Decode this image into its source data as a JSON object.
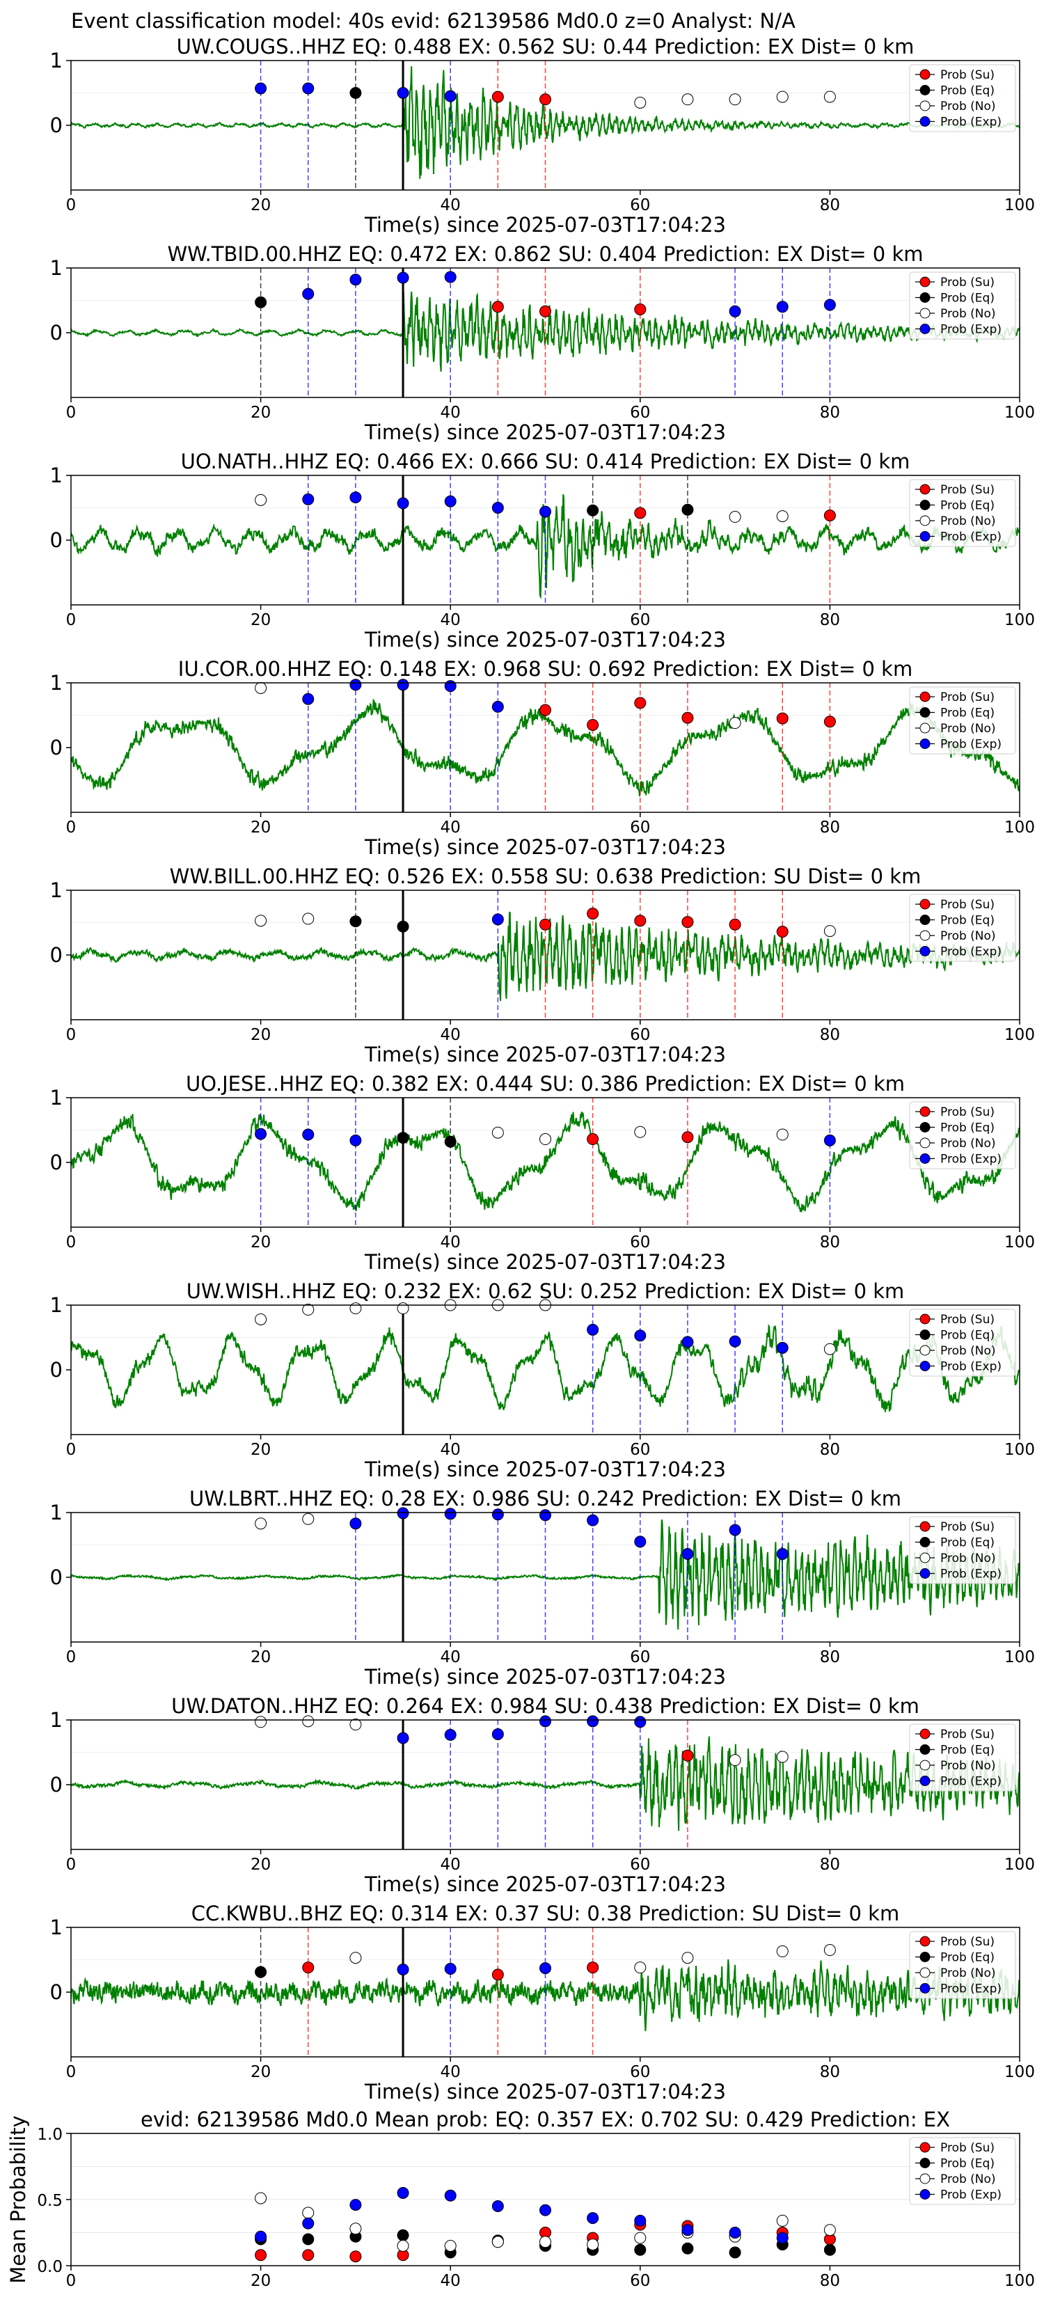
{
  "suptitle": "Event classification model: 40s evid: 62139586 Md0.0 z=0 Analyst: N/A",
  "legend_labels": [
    "Prob (Su)",
    "Prob (Eq)",
    "Prob (No)",
    "Prob (Exp)"
  ],
  "colors": {
    "su": "#ff0000",
    "eq": "#000000",
    "no": "#ffffff",
    "exp": "#0000ff",
    "trace": "#008000"
  },
  "chart_data": [
    {
      "type": "line",
      "title": "UW.COUGS..HHZ   EQ: 0.488  EX: 0.562  SU: 0.44   Prediction: EX    Dist= 0 km",
      "xlabel": "Time(s) since 2025-07-03T17:04:23",
      "xlim": [
        0,
        100
      ],
      "ylim": [
        -1,
        1
      ],
      "xticks": [
        0,
        20,
        40,
        60,
        80,
        100
      ],
      "yticks": [
        0,
        1
      ],
      "arrival_time": 35,
      "noise": 0.02,
      "amp": 0.02,
      "burst": 1.0,
      "decay": 12,
      "freq": 2.2,
      "seed": 1,
      "points": [
        {
          "t": 20,
          "cls": "exp",
          "p": 0.57
        },
        {
          "t": 25,
          "cls": "exp",
          "p": 0.57
        },
        {
          "t": 30,
          "cls": "eq",
          "p": 0.5
        },
        {
          "t": 35,
          "cls": "exp",
          "p": 0.5
        },
        {
          "t": 40,
          "cls": "exp",
          "p": 0.45
        },
        {
          "t": 45,
          "cls": "su",
          "p": 0.44
        },
        {
          "t": 50,
          "cls": "su",
          "p": 0.4
        },
        {
          "t": 60,
          "cls": "no",
          "p": 0.35
        },
        {
          "t": 65,
          "cls": "no",
          "p": 0.4
        },
        {
          "t": 70,
          "cls": "no",
          "p": 0.4
        },
        {
          "t": 75,
          "cls": "no",
          "p": 0.44
        },
        {
          "t": 80,
          "cls": "no",
          "p": 0.44
        }
      ]
    },
    {
      "type": "line",
      "title": "WW.TBID.00.HHZ   EQ: 0.472  EX: 0.862  SU: 0.404   Prediction: EX    Dist= 0 km",
      "xlabel": "Time(s) since 2025-07-03T17:04:23",
      "xlim": [
        0,
        100
      ],
      "ylim": [
        -1,
        1
      ],
      "xticks": [
        0,
        20,
        40,
        60,
        80,
        100
      ],
      "yticks": [
        0,
        1
      ],
      "arrival_time": 35,
      "noise": 0.02,
      "amp": 0.03,
      "burst": 0.65,
      "decay": 28,
      "freq": 1.6,
      "seed": 2,
      "points": [
        {
          "t": 20,
          "cls": "eq",
          "p": 0.47
        },
        {
          "t": 25,
          "cls": "exp",
          "p": 0.6
        },
        {
          "t": 30,
          "cls": "exp",
          "p": 0.82
        },
        {
          "t": 35,
          "cls": "exp",
          "p": 0.85
        },
        {
          "t": 40,
          "cls": "exp",
          "p": 0.86
        },
        {
          "t": 45,
          "cls": "su",
          "p": 0.4
        },
        {
          "t": 50,
          "cls": "su",
          "p": 0.33
        },
        {
          "t": 60,
          "cls": "su",
          "p": 0.36
        },
        {
          "t": 70,
          "cls": "exp",
          "p": 0.33
        },
        {
          "t": 75,
          "cls": "exp",
          "p": 0.4
        },
        {
          "t": 80,
          "cls": "exp",
          "p": 0.43
        }
      ]
    },
    {
      "type": "line",
      "title": "UO.NATH..HHZ   EQ: 0.466  EX: 0.666  SU: 0.414   Prediction: EX    Dist= 0 km",
      "xlabel": "Time(s) since 2025-07-03T17:04:23",
      "xlim": [
        0,
        100
      ],
      "ylim": [
        -1,
        1
      ],
      "xticks": [
        0,
        20,
        40,
        60,
        80,
        100
      ],
      "yticks": [
        0,
        1
      ],
      "arrival_time": 35,
      "noise": 0.1,
      "amp": 0.12,
      "burst": 0.75,
      "decay": 10,
      "freq": 1.2,
      "seed": 3,
      "burst_at": 49,
      "points": [
        {
          "t": 20,
          "cls": "no",
          "p": 0.62
        },
        {
          "t": 25,
          "cls": "exp",
          "p": 0.63
        },
        {
          "t": 30,
          "cls": "exp",
          "p": 0.66
        },
        {
          "t": 35,
          "cls": "exp",
          "p": 0.57
        },
        {
          "t": 40,
          "cls": "exp",
          "p": 0.6
        },
        {
          "t": 45,
          "cls": "exp",
          "p": 0.5
        },
        {
          "t": 50,
          "cls": "exp",
          "p": 0.44
        },
        {
          "t": 55,
          "cls": "eq",
          "p": 0.46
        },
        {
          "t": 60,
          "cls": "su",
          "p": 0.42
        },
        {
          "t": 65,
          "cls": "eq",
          "p": 0.47
        },
        {
          "t": 70,
          "cls": "no",
          "p": 0.36
        },
        {
          "t": 75,
          "cls": "no",
          "p": 0.37
        },
        {
          "t": 80,
          "cls": "su",
          "p": 0.38
        }
      ]
    },
    {
      "type": "line",
      "title": "IU.COR.00.HHZ   EQ: 0.148  EX: 0.968  SU: 0.692   Prediction: EX    Dist= 0 km",
      "xlabel": "Time(s) since 2025-07-03T17:04:23",
      "xlim": [
        0,
        100
      ],
      "ylim": [
        -1,
        1
      ],
      "xticks": [
        0,
        20,
        40,
        60,
        80,
        100
      ],
      "yticks": [
        0,
        1
      ],
      "arrival_time": 35,
      "noise": 0.08,
      "amp": 0.45,
      "burst": 0.0,
      "decay": 10,
      "freq": 0.25,
      "seed": 4,
      "points": [
        {
          "t": 20,
          "cls": "no",
          "p": 0.92
        },
        {
          "t": 25,
          "cls": "exp",
          "p": 0.75
        },
        {
          "t": 30,
          "cls": "exp",
          "p": 0.97
        },
        {
          "t": 35,
          "cls": "exp",
          "p": 0.97
        },
        {
          "t": 40,
          "cls": "exp",
          "p": 0.95
        },
        {
          "t": 45,
          "cls": "exp",
          "p": 0.63
        },
        {
          "t": 50,
          "cls": "su",
          "p": 0.58
        },
        {
          "t": 55,
          "cls": "su",
          "p": 0.35
        },
        {
          "t": 60,
          "cls": "su",
          "p": 0.69
        },
        {
          "t": 65,
          "cls": "su",
          "p": 0.46
        },
        {
          "t": 70,
          "cls": "no",
          "p": 0.38
        },
        {
          "t": 75,
          "cls": "su",
          "p": 0.45
        },
        {
          "t": 80,
          "cls": "su",
          "p": 0.4
        }
      ]
    },
    {
      "type": "line",
      "title": "WW.BILL.00.HHZ   EQ: 0.526  EX: 0.558  SU: 0.638   Prediction: SU    Dist= 0 km",
      "xlabel": "Time(s) since 2025-07-03T17:04:23",
      "xlim": [
        0,
        100
      ],
      "ylim": [
        -1,
        1
      ],
      "xticks": [
        0,
        20,
        40,
        60,
        80,
        100
      ],
      "yticks": [
        0,
        1
      ],
      "arrival_time": 35,
      "noise": 0.05,
      "amp": 0.05,
      "burst": 0.7,
      "decay": 30,
      "freq": 1.0,
      "seed": 5,
      "burst_at": 45,
      "points": [
        {
          "t": 20,
          "cls": "no",
          "p": 0.53
        },
        {
          "t": 25,
          "cls": "no",
          "p": 0.56
        },
        {
          "t": 30,
          "cls": "eq",
          "p": 0.52
        },
        {
          "t": 35,
          "cls": "eq",
          "p": 0.44
        },
        {
          "t": 45,
          "cls": "exp",
          "p": 0.55
        },
        {
          "t": 50,
          "cls": "su",
          "p": 0.47
        },
        {
          "t": 55,
          "cls": "su",
          "p": 0.64
        },
        {
          "t": 60,
          "cls": "su",
          "p": 0.53
        },
        {
          "t": 65,
          "cls": "su",
          "p": 0.51
        },
        {
          "t": 70,
          "cls": "su",
          "p": 0.47
        },
        {
          "t": 75,
          "cls": "su",
          "p": 0.36
        },
        {
          "t": 80,
          "cls": "no",
          "p": 0.37
        }
      ]
    },
    {
      "type": "line",
      "title": "UO.JESE..HHZ   EQ: 0.382  EX: 0.444  SU: 0.386   Prediction: EX    Dist= 0 km",
      "xlabel": "Time(s) since 2025-07-03T17:04:23",
      "xlim": [
        0,
        100
      ],
      "ylim": [
        -1,
        1
      ],
      "xticks": [
        0,
        20,
        40,
        60,
        80,
        100
      ],
      "yticks": [
        0,
        1
      ],
      "arrival_time": 35,
      "noise": 0.08,
      "amp": 0.5,
      "burst": 0.0,
      "decay": 10,
      "freq": 0.3,
      "seed": 6,
      "points": [
        {
          "t": 20,
          "cls": "exp",
          "p": 0.44
        },
        {
          "t": 25,
          "cls": "exp",
          "p": 0.43
        },
        {
          "t": 30,
          "cls": "exp",
          "p": 0.34
        },
        {
          "t": 35,
          "cls": "eq",
          "p": 0.38
        },
        {
          "t": 40,
          "cls": "eq",
          "p": 0.32
        },
        {
          "t": 45,
          "cls": "no",
          "p": 0.46
        },
        {
          "t": 50,
          "cls": "no",
          "p": 0.36
        },
        {
          "t": 55,
          "cls": "su",
          "p": 0.36
        },
        {
          "t": 60,
          "cls": "no",
          "p": 0.47
        },
        {
          "t": 65,
          "cls": "su",
          "p": 0.39
        },
        {
          "t": 75,
          "cls": "no",
          "p": 0.43
        },
        {
          "t": 80,
          "cls": "exp",
          "p": 0.34
        }
      ]
    },
    {
      "type": "line",
      "title": "UW.WISH..HHZ   EQ: 0.232  EX: 0.62  SU: 0.252   Prediction: EX    Dist= 0 km",
      "xlabel": "Time(s) since 2025-07-03T17:04:23",
      "xlim": [
        0,
        100
      ],
      "ylim": [
        -1,
        1
      ],
      "xticks": [
        0,
        20,
        40,
        60,
        80,
        100
      ],
      "yticks": [
        0,
        1
      ],
      "arrival_time": 35,
      "noise": 0.08,
      "amp": 0.4,
      "burst": 0.2,
      "decay": 40,
      "freq": 0.6,
      "seed": 7,
      "burst_at": 70,
      "points": [
        {
          "t": 20,
          "cls": "no",
          "p": 0.78
        },
        {
          "t": 25,
          "cls": "no",
          "p": 0.93
        },
        {
          "t": 30,
          "cls": "no",
          "p": 0.95
        },
        {
          "t": 35,
          "cls": "no",
          "p": 0.95
        },
        {
          "t": 40,
          "cls": "no",
          "p": 1.0
        },
        {
          "t": 45,
          "cls": "no",
          "p": 1.0
        },
        {
          "t": 50,
          "cls": "no",
          "p": 1.0
        },
        {
          "t": 55,
          "cls": "exp",
          "p": 0.62
        },
        {
          "t": 60,
          "cls": "exp",
          "p": 0.53
        },
        {
          "t": 65,
          "cls": "exp",
          "p": 0.43
        },
        {
          "t": 70,
          "cls": "exp",
          "p": 0.44
        },
        {
          "t": 75,
          "cls": "exp",
          "p": 0.34
        },
        {
          "t": 80,
          "cls": "no",
          "p": 0.32
        }
      ]
    },
    {
      "type": "line",
      "title": "UW.LBRT..HHZ   EQ: 0.28  EX: 0.986  SU: 0.242   Prediction: EX    Dist= 0 km",
      "xlabel": "Time(s) since 2025-07-03T17:04:23",
      "xlim": [
        0,
        100
      ],
      "ylim": [
        -1,
        1
      ],
      "xticks": [
        0,
        20,
        40,
        60,
        80,
        100
      ],
      "yticks": [
        0,
        1
      ],
      "arrival_time": 35,
      "noise": 0.02,
      "amp": 0.02,
      "burst": 0.8,
      "decay": 60,
      "freq": 0.7,
      "seed": 8,
      "burst_at": 62,
      "points": [
        {
          "t": 20,
          "cls": "no",
          "p": 0.83
        },
        {
          "t": 25,
          "cls": "no",
          "p": 0.9
        },
        {
          "t": 30,
          "cls": "exp",
          "p": 0.83
        },
        {
          "t": 35,
          "cls": "exp",
          "p": 0.99
        },
        {
          "t": 40,
          "cls": "exp",
          "p": 0.98
        },
        {
          "t": 45,
          "cls": "exp",
          "p": 0.97
        },
        {
          "t": 50,
          "cls": "exp",
          "p": 0.96
        },
        {
          "t": 55,
          "cls": "exp",
          "p": 0.88
        },
        {
          "t": 60,
          "cls": "exp",
          "p": 0.55
        },
        {
          "t": 65,
          "cls": "exp",
          "p": 0.36
        },
        {
          "t": 70,
          "cls": "exp",
          "p": 0.73
        },
        {
          "t": 75,
          "cls": "exp",
          "p": 0.36
        }
      ]
    },
    {
      "type": "line",
      "title": "UW.DATON..HHZ   EQ: 0.264  EX: 0.984  SU: 0.438   Prediction: EX    Dist= 0 km",
      "xlabel": "Time(s) since 2025-07-03T17:04:23",
      "xlim": [
        0,
        100
      ],
      "ylim": [
        -1,
        1
      ],
      "xticks": [
        0,
        20,
        40,
        60,
        80,
        100
      ],
      "yticks": [
        0,
        1
      ],
      "arrival_time": 35,
      "noise": 0.03,
      "amp": 0.03,
      "burst": 0.75,
      "decay": 60,
      "freq": 0.7,
      "seed": 9,
      "burst_at": 60,
      "points": [
        {
          "t": 20,
          "cls": "no",
          "p": 0.97
        },
        {
          "t": 25,
          "cls": "no",
          "p": 0.98
        },
        {
          "t": 30,
          "cls": "no",
          "p": 0.93
        },
        {
          "t": 35,
          "cls": "exp",
          "p": 0.72
        },
        {
          "t": 40,
          "cls": "exp",
          "p": 0.77
        },
        {
          "t": 45,
          "cls": "exp",
          "p": 0.78
        },
        {
          "t": 50,
          "cls": "exp",
          "p": 0.98
        },
        {
          "t": 55,
          "cls": "exp",
          "p": 0.98
        },
        {
          "t": 60,
          "cls": "exp",
          "p": 0.97
        },
        {
          "t": 65,
          "cls": "su",
          "p": 0.45
        },
        {
          "t": 70,
          "cls": "no",
          "p": 0.38
        },
        {
          "t": 75,
          "cls": "no",
          "p": 0.43
        }
      ]
    },
    {
      "type": "line",
      "title": "CC.KWBU..BHZ   EQ: 0.314  EX: 0.37  SU: 0.38   Prediction: SU    Dist= 0 km",
      "xlabel": "Time(s) since 2025-07-03T17:04:23",
      "xlim": [
        0,
        100
      ],
      "ylim": [
        -1,
        1
      ],
      "xticks": [
        0,
        20,
        40,
        60,
        80,
        100
      ],
      "yticks": [
        0,
        1
      ],
      "arrival_time": 35,
      "noise": 0.2,
      "amp": 0.05,
      "burst": 0.4,
      "decay": 80,
      "freq": 2.0,
      "seed": 10,
      "burst_at": 60,
      "points": [
        {
          "t": 20,
          "cls": "eq",
          "p": 0.31
        },
        {
          "t": 25,
          "cls": "su",
          "p": 0.38
        },
        {
          "t": 30,
          "cls": "no",
          "p": 0.53
        },
        {
          "t": 35,
          "cls": "exp",
          "p": 0.35
        },
        {
          "t": 40,
          "cls": "exp",
          "p": 0.36
        },
        {
          "t": 45,
          "cls": "su",
          "p": 0.27
        },
        {
          "t": 50,
          "cls": "exp",
          "p": 0.37
        },
        {
          "t": 55,
          "cls": "su",
          "p": 0.38
        },
        {
          "t": 60,
          "cls": "no",
          "p": 0.38
        },
        {
          "t": 65,
          "cls": "no",
          "p": 0.53
        },
        {
          "t": 75,
          "cls": "no",
          "p": 0.63
        },
        {
          "t": 80,
          "cls": "no",
          "p": 0.65
        }
      ]
    },
    {
      "type": "scatter",
      "title": "evid: 62139586  Md0.0   Mean prob:   EQ: 0.357  EX: 0.702  SU: 0.429   Prediction: EX",
      "ylabel": "Mean Probability",
      "xlim": [
        0,
        100
      ],
      "ylim": [
        0,
        1
      ],
      "xticks": [
        0,
        20,
        40,
        60,
        80,
        100
      ],
      "yticks": [
        0.0,
        0.5,
        1.0
      ],
      "ytick_labels": [
        "0.0",
        "0.5",
        "1.0"
      ],
      "grid": true,
      "series": [
        {
          "name": "Prob (Su)",
          "cls": "su",
          "t": [
            20,
            25,
            30,
            35,
            45,
            50,
            55,
            60,
            65,
            70,
            75,
            80
          ],
          "p": [
            0.08,
            0.08,
            0.07,
            0.08,
            0.18,
            0.25,
            0.21,
            0.31,
            0.3,
            0.23,
            0.25,
            0.2
          ]
        },
        {
          "name": "Prob (Eq)",
          "cls": "eq",
          "t": [
            20,
            25,
            30,
            35,
            40,
            45,
            50,
            55,
            60,
            65,
            70,
            75,
            80
          ],
          "p": [
            0.2,
            0.2,
            0.22,
            0.23,
            0.1,
            0.19,
            0.15,
            0.12,
            0.12,
            0.13,
            0.1,
            0.16,
            0.12
          ]
        },
        {
          "name": "Prob (No)",
          "cls": "no",
          "t": [
            20,
            25,
            30,
            35,
            40,
            45,
            50,
            55,
            60,
            65,
            70,
            75,
            80
          ],
          "p": [
            0.51,
            0.4,
            0.28,
            0.15,
            0.15,
            0.18,
            0.18,
            0.16,
            0.21,
            0.25,
            0.22,
            0.34,
            0.27
          ]
        },
        {
          "name": "Prob (Exp)",
          "cls": "exp",
          "t": [
            20,
            25,
            30,
            35,
            40,
            45,
            50,
            55,
            60,
            65,
            70,
            75
          ],
          "p": [
            0.22,
            0.32,
            0.46,
            0.55,
            0.53,
            0.45,
            0.42,
            0.36,
            0.34,
            0.27,
            0.25,
            0.21
          ]
        }
      ]
    }
  ]
}
